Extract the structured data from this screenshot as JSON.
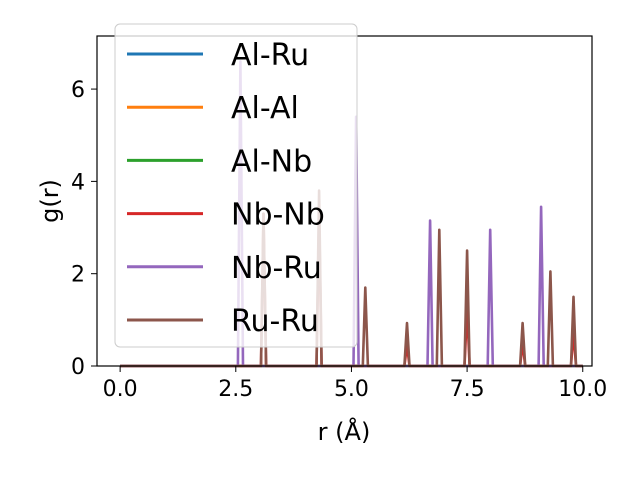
{
  "chart_data": {
    "type": "line",
    "xlabel": "r (Å)",
    "ylabel": "g(r)",
    "xlim": [
      -0.5,
      10.2
    ],
    "ylim": [
      0,
      7.15
    ],
    "x_ticks": [
      "0.0",
      "2.5",
      "5.0",
      "7.5",
      "10.0"
    ],
    "y_ticks": [
      "0",
      "2",
      "4",
      "6"
    ],
    "grid": false,
    "legend_position": "upper-left",
    "peak_width": 0.055,
    "series": [
      {
        "name": "Al-Ru",
        "color": "#1f77b4",
        "peaks": []
      },
      {
        "name": "Al-Al",
        "color": "#ff7f0e",
        "peaks": []
      },
      {
        "name": "Al-Nb",
        "color": "#2ca02c",
        "peaks": []
      },
      {
        "name": "Nb-Nb",
        "color": "#d62728",
        "peaks": [
          [
            3.1,
            3.3
          ],
          [
            4.3,
            3.3
          ],
          [
            6.2,
            0.45
          ],
          [
            7.5,
            1.25
          ],
          [
            8.7,
            0.5
          ],
          [
            9.8,
            0.75
          ]
        ]
      },
      {
        "name": "Nb-Ru",
        "color": "#9467bd",
        "peaks": [
          [
            2.6,
            6.6
          ],
          [
            5.1,
            5.4
          ],
          [
            6.7,
            3.15
          ],
          [
            8.0,
            2.95
          ],
          [
            9.1,
            3.45
          ]
        ]
      },
      {
        "name": "Ru-Ru",
        "color": "#8c564b",
        "peaks": [
          [
            3.1,
            3.3
          ],
          [
            4.3,
            3.8
          ],
          [
            5.3,
            1.7
          ],
          [
            6.2,
            0.93
          ],
          [
            6.9,
            2.95
          ],
          [
            7.5,
            2.5
          ],
          [
            8.7,
            0.93
          ],
          [
            9.3,
            2.05
          ],
          [
            9.8,
            1.5
          ]
        ]
      }
    ]
  }
}
